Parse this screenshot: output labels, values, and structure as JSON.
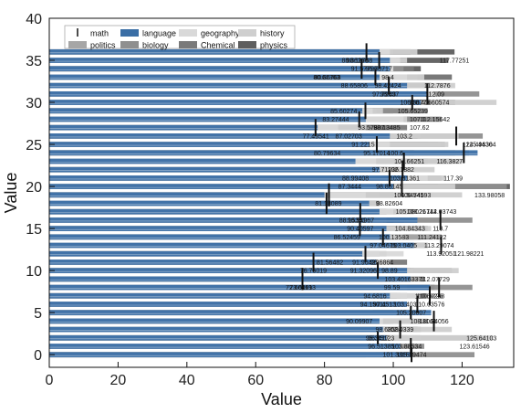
{
  "chart_data": {
    "type": "bar",
    "orientation": "horizontal",
    "stacking": "overlay",
    "title": "",
    "xlabel": "Value",
    "ylabel": "Value",
    "xlim": [
      0,
      135
    ],
    "ylim": [
      -1.5,
      40
    ],
    "xticks": [
      0,
      20,
      40,
      60,
      80,
      100,
      120
    ],
    "yticks": [
      0,
      5,
      10,
      15,
      20,
      25,
      30,
      35,
      40
    ],
    "grid": false,
    "legend_position": "top-left",
    "y": [
      0,
      1,
      2,
      3,
      4,
      5,
      6,
      7,
      8,
      9,
      10,
      11,
      12,
      13,
      14,
      15,
      16,
      17,
      18,
      19,
      20,
      21,
      22,
      23,
      24,
      25,
      26,
      27,
      28,
      29,
      30,
      31,
      32,
      33,
      34,
      35,
      36
    ],
    "series": [
      {
        "name": "math",
        "kind": "errorbar",
        "color": "#111111",
        "values": [
          105.3,
          105.1,
          95.5,
          102.0,
          111.8,
          105.1,
          107.0,
          110.6,
          113.3,
          73.6,
          95.5,
          76.8,
          91.9,
          113.9,
          97.0,
          90.3,
          113.7,
          90.4,
          80.6,
          81.3,
          102.5,
          98.9,
          102.7,
          103.1,
          120.5,
          95.2,
          118.3,
          77.4,
          90.1,
          91.9,
          105.5,
          109.9,
          98.7,
          94.8,
          90.8,
          95.9,
          92.2
        ],
        "errors": [
          1.8,
          2.0,
          1.5,
          2.2,
          2.5,
          1.6,
          2.1,
          2.3,
          2.4,
          2.7,
          2.0,
          2.3,
          1.9,
          2.2,
          2.0,
          1.8,
          2.4,
          2.1,
          2.6,
          2.8,
          2.3,
          2.0,
          2.2,
          2.1,
          2.5,
          2.0,
          2.3,
          2.1,
          1.9,
          2.0,
          1.8,
          2.6,
          2.2,
          1.9,
          2.4,
          2.0,
          2.1
        ]
      },
      {
        "name": "language",
        "color": "#3a6ea5",
        "values": [
          105.0,
          102.0,
          98.0,
          97.0,
          96.0,
          111.0,
          104.0,
          99.0,
          110.6,
          105.0,
          104.0,
          95.0,
          91.0,
          106.0,
          99.0,
          98.0,
          107.0,
          96.0,
          93.0,
          80.0,
          100.0,
          104.0,
          96.0,
          89.0,
          124.5,
          93.0,
          99.0,
          78.0,
          92.0,
          91.0,
          108.0,
          110.0,
          104.0,
          96.0,
          99.0,
          99.0,
          96.0
        ]
      },
      {
        "name": "geography",
        "color": "#d9d9d9",
        "values": [
          95.0,
          96.0,
          98.0,
          96.0,
          97.0,
          94.0,
          101.0,
          108.0,
          101.0,
          101.0,
          93.0,
          94.0,
          103.0,
          101.0,
          99.0,
          95.0,
          98.0,
          100.0,
          87.0,
          92.0,
          97.0,
          110.0,
          90.0,
          95.0,
          93.0,
          99.0,
          92.0,
          84.0,
          103.0,
          94.0,
          99.0,
          110.0,
          99.0,
          104.0,
          100.0,
          102.0,
          99.0
        ]
      },
      {
        "name": "history",
        "color": "#cfcfcf",
        "values": [
          98.0,
          99.0,
          129.0,
          117.0,
          110.0,
          108.0,
          103.0,
          104.0,
          97.0,
          101.0,
          119.0,
          99.0,
          96.0,
          110.0,
          103.0,
          111.0,
          97.0,
          106.0,
          95.0,
          120.0,
          118.0,
          115.0,
          112.0,
          120.0,
          121.0,
          116.0,
          119.0,
          92.0,
          104.0,
          97.0,
          130.0,
          112.0,
          118.0,
          109.0,
          100.0,
          104.0,
          107.0
        ]
      },
      {
        "name": "politics",
        "color": "#a6a6a6",
        "values": [
          105.0,
          100.0,
          108.0,
          99.0,
          92.0,
          96.0,
          104.0,
          102.0,
          104.0,
          109.0,
          106.0,
          96.0,
          96.0,
          102.0,
          114.0,
          103.0,
          103.0,
          104.0,
          92.0,
          96.0,
          103.0,
          108.0,
          101.0,
          104.0,
          106.0,
          114.0,
          108.0,
          93.0,
          104.0,
          95.0,
          104.0,
          112.0,
          101.0,
          107.0,
          98.0,
          101.0,
          100.0
        ]
      },
      {
        "name": "biology",
        "color": "#8f8f8f",
        "values": [
          123.6,
          109.0,
          125.6,
          108.0,
          100.0,
          102.0,
          98.0,
          110.0,
          123.0,
          98.0,
          117.0,
          94.0,
          98.0,
          110.0,
          106.0,
          108.0,
          123.0,
          98.0,
          96.0,
          91.0,
          133.0,
          114.0,
          98.0,
          117.0,
          122.0,
          115.0,
          126.0,
          96.0,
          114.0,
          110.0,
          107.0,
          125.0,
          111.0,
          108.0,
          103.0,
          101.0,
          105.0
        ]
      },
      {
        "name": "Chemical",
        "color": "#7a7a7a",
        "values": [
          101.0,
          93.0,
          104.0,
          107.0,
          108.0,
          105.0,
          101.0,
          101.0,
          112.0,
          97.0,
          105.0,
          104.0,
          93.0,
          98.0,
          108.0,
          110.0,
          100.0,
          101.0,
          94.0,
          102.0,
          113.0,
          102.0,
          98.0,
          101.0,
          118.0,
          113.0,
          99.0,
          104.0,
          105.0,
          100.0,
          118.0,
          104.0,
          99.0,
          117.0,
          106.0,
          104.0,
          105.0
        ]
      },
      {
        "name": "physics",
        "color": "#5e5e5e",
        "values": [
          92.0,
          98.0,
          96.0,
          104.0,
          99.0,
          100.0,
          96.0,
          104.0,
          97.0,
          98.0,
          104.0,
          95.0,
          92.0,
          106.0,
          102.0,
          101.0,
          92.0,
          98.0,
          95.0,
          100.0,
          133.9,
          104.0,
          102.0,
          110.0,
          106.0,
          110.0,
          107.0,
          96.0,
          104.0,
          108.0,
          114.0,
          110.0,
          111.0,
          117.0,
          108.0,
          116.0,
          117.8
        ]
      }
    ],
    "data_labels": [
      {
        "y": 0,
        "value": "101.33158"
      },
      {
        "y": 0,
        "value": "105.29474"
      },
      {
        "y": 1,
        "value": "96.51385"
      },
      {
        "y": 1,
        "value": "103.88534"
      },
      {
        "y": 1,
        "value": "123.61546"
      },
      {
        "y": 2,
        "value": "96.45123"
      },
      {
        "y": 2,
        "value": "95.3417"
      },
      {
        "y": 2,
        "value": "125.64103"
      },
      {
        "y": 3,
        "value": "98.68594"
      },
      {
        "y": 3,
        "value": "102.0339"
      },
      {
        "y": 4,
        "value": "111.84056"
      },
      {
        "y": 4,
        "value": "108.8061"
      },
      {
        "y": 4,
        "value": "90.09907"
      },
      {
        "y": 5,
        "value": "105.20007"
      },
      {
        "y": 6,
        "value": "110.63576"
      },
      {
        "y": 6,
        "value": "94.15011"
      },
      {
        "y": 6,
        "value": "97.4513"
      },
      {
        "y": 6,
        "value": "103.403"
      },
      {
        "y": 7,
        "value": "110.60268"
      },
      {
        "y": 7,
        "value": "110.6026"
      },
      {
        "y": 7,
        "value": "94.6816"
      },
      {
        "y": 8,
        "value": "72.60061"
      },
      {
        "y": 8,
        "value": "73.61193"
      },
      {
        "y": 8,
        "value": "99.59"
      },
      {
        "y": 9,
        "value": "112.07729"
      },
      {
        "y": 9,
        "value": "103.40163371"
      },
      {
        "y": 10,
        "value": "91.32096"
      },
      {
        "y": 10,
        "value": "76.76019"
      },
      {
        "y": 10,
        "value": "98.89"
      },
      {
        "y": 11,
        "value": "81.56482"
      },
      {
        "y": 11,
        "value": "91.96429"
      },
      {
        "y": 11,
        "value": "96.6864"
      },
      {
        "y": 12,
        "value": "121.98221"
      },
      {
        "y": 12,
        "value": "113.92051"
      },
      {
        "y": 13,
        "value": "113.29074"
      },
      {
        "y": 13,
        "value": "97.04675"
      },
      {
        "y": 13,
        "value": "103.0405"
      },
      {
        "y": 14,
        "value": "86.52459"
      },
      {
        "y": 14,
        "value": "100.13583"
      },
      {
        "y": 14,
        "value": "111.24122"
      },
      {
        "y": 15,
        "value": "104.84343"
      },
      {
        "y": 15,
        "value": "90.40597"
      },
      {
        "y": 15,
        "value": "113.7"
      },
      {
        "y": 16,
        "value": "88.15391"
      },
      {
        "y": 16,
        "value": "90.54967"
      },
      {
        "y": 17,
        "value": "105.08021"
      },
      {
        "y": 17,
        "value": "114.03743"
      },
      {
        "y": 17,
        "value": "108.26742"
      },
      {
        "y": 18,
        "value": "98.82604"
      },
      {
        "y": 18,
        "value": "81.13089"
      },
      {
        "y": 19,
        "value": "104.54745"
      },
      {
        "y": 19,
        "value": "106.54193"
      },
      {
        "y": 19,
        "value": "133.98058"
      },
      {
        "y": 20,
        "value": "87.3444"
      },
      {
        "y": 20,
        "value": "98.86145"
      },
      {
        "y": 21,
        "value": "88.99408"
      },
      {
        "y": 21,
        "value": "103.31361"
      },
      {
        "y": 21,
        "value": "117.39"
      },
      {
        "y": 22,
        "value": "97.71236"
      },
      {
        "y": 22,
        "value": "102.1882"
      },
      {
        "y": 23,
        "value": "116.3827"
      },
      {
        "y": 23,
        "value": "104.66251"
      },
      {
        "y": 24,
        "value": "80.79634"
      },
      {
        "y": 24,
        "value": "95.17014"
      },
      {
        "y": 24,
        "value": "100.6"
      },
      {
        "y": 25,
        "value": "125.44304"
      },
      {
        "y": 25,
        "value": "91.2215"
      },
      {
        "y": 25,
        "value": "124.49636"
      },
      {
        "y": 26,
        "value": "87.02703"
      },
      {
        "y": 26,
        "value": "77.49541"
      },
      {
        "y": 26,
        "value": "103.2"
      },
      {
        "y": 27,
        "value": "93.57807"
      },
      {
        "y": 27,
        "value": "98.13485"
      },
      {
        "y": 27,
        "value": "107.62"
      },
      {
        "y": 28,
        "value": "83.27444"
      },
      {
        "y": 28,
        "value": "107.1"
      },
      {
        "y": 28,
        "value": "112.15642"
      },
      {
        "y": 29,
        "value": "85.60274"
      },
      {
        "y": 29,
        "value": "105.65239"
      },
      {
        "y": 30,
        "value": "106.36776"
      },
      {
        "y": 30,
        "value": "110.40660574"
      },
      {
        "y": 31,
        "value": "97.79697"
      },
      {
        "y": 31,
        "value": "98.43"
      },
      {
        "y": 31,
        "value": "112.09"
      },
      {
        "y": 32,
        "value": "98.42424"
      },
      {
        "y": 32,
        "value": "88.65806"
      },
      {
        "y": 32,
        "value": "112.7876"
      },
      {
        "y": 33,
        "value": "80.86763"
      },
      {
        "y": 33,
        "value": "80.61363"
      },
      {
        "y": 33,
        "value": "98.4"
      },
      {
        "y": 34,
        "value": "95.78717"
      },
      {
        "y": 34,
        "value": "91.57796"
      },
      {
        "y": 35,
        "value": "88.86266"
      },
      {
        "y": 35,
        "value": "90.11788"
      },
      {
        "y": 35,
        "value": "117.77251"
      }
    ]
  }
}
